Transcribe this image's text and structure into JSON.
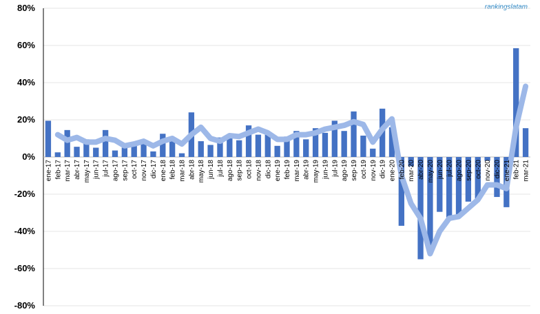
{
  "chart_data": {
    "type": "combo",
    "annotations": [
      "rankingslatam"
    ],
    "categories": [
      "ene-17",
      "feb-17",
      "mar-17",
      "abr-17",
      "may-17",
      "jun-17",
      "jul-17",
      "ago-17",
      "sep-17",
      "oct-17",
      "nov-17",
      "dic-17",
      "ene-18",
      "feb-18",
      "mar-18",
      "abr-18",
      "may-18",
      "jun-18",
      "jul-18",
      "ago-18",
      "sep-18",
      "oct-18",
      "nov-18",
      "dic-18",
      "ene-19",
      "feb-19",
      "mar-19",
      "abr-19",
      "may-19",
      "jun-19",
      "jul-19",
      "ago-19",
      "sep-19",
      "oct-19",
      "nov-19",
      "dic-19",
      "ene-20",
      "feb-20",
      "mar-20",
      "abr-20",
      "may-20",
      "jun-20",
      "jul-20",
      "ago-20",
      "sep-20",
      "oct-20",
      "nov-20",
      "dic-20",
      "ene-21",
      "feb-21",
      "mar-21"
    ],
    "series": [
      {
        "type": "bar",
        "color": "#4472c4",
        "values": [
          19.5,
          2.5,
          14.5,
          5.5,
          9.5,
          5,
          14.5,
          3.5,
          5,
          8,
          8,
          3,
          12.5,
          10,
          2,
          24,
          8.5,
          6.5,
          10.5,
          11,
          9,
          17,
          12,
          12,
          6,
          11,
          14,
          9.5,
          15.5,
          13,
          19.5,
          14,
          24.5,
          11.5,
          4.5,
          26,
          16,
          -37,
          -5,
          -55,
          -48.5,
          -29.5,
          -34,
          -32,
          -24,
          -22.5,
          -2,
          -21.5,
          -27,
          58.5,
          15.5
        ]
      },
      {
        "type": "line",
        "color": "#9db8e8",
        "values": [
          null,
          12,
          9,
          10.5,
          8,
          8,
          10,
          9,
          6,
          7,
          8.5,
          6,
          8.5,
          10,
          7,
          12,
          16,
          10,
          8.5,
          11.5,
          11,
          13,
          15,
          13,
          9.5,
          9.5,
          12,
          12,
          13,
          15,
          16,
          17,
          19,
          17.5,
          8,
          15,
          20.5,
          -10,
          -25,
          -33,
          -52,
          -40,
          -33,
          -32,
          -27.5,
          -23,
          -15,
          -15,
          -17,
          16,
          38
        ]
      }
    ],
    "ylim": [
      -80,
      80
    ],
    "yticks": [
      {
        "value": -80,
        "label": "-80%"
      },
      {
        "value": -60,
        "label": "-60%"
      },
      {
        "value": -40,
        "label": "-40%"
      },
      {
        "value": -20,
        "label": "-20%"
      },
      {
        "value": 0,
        "label": "0%"
      },
      {
        "value": 20,
        "label": "20%"
      },
      {
        "value": 40,
        "label": "40%"
      },
      {
        "value": 60,
        "label": "60%"
      },
      {
        "value": 80,
        "label": "80%"
      }
    ],
    "grid": true
  }
}
